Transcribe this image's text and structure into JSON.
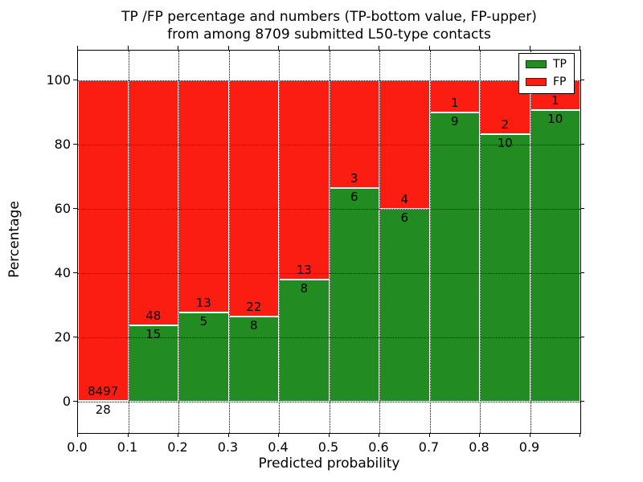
{
  "title": {
    "line1": "TP /FP percentage and numbers (TP-bottom value, FP-upper)",
    "line2": "from among 8709 submitted L50-type contacts"
  },
  "axes": {
    "x_label": "Predicted probability",
    "y_label": "Percentage",
    "x_ticks": [
      "0.0",
      "0.1",
      "0.2",
      "0.3",
      "0.4",
      "0.5",
      "0.6",
      "0.7",
      "0.8",
      "0.9"
    ],
    "y_ticks": [
      "0",
      "20",
      "40",
      "60",
      "80",
      "100"
    ]
  },
  "legend": {
    "items": [
      {
        "label": "TP",
        "color": "#228b22"
      },
      {
        "label": "FP",
        "color": "#fb1d12"
      }
    ]
  },
  "colors": {
    "tp": "#228b22",
    "fp": "#fb1d12",
    "grid": "#000000"
  },
  "total_contacts": "8709",
  "chart_data": {
    "type": "bar",
    "stacked": true,
    "title": "TP /FP percentage and numbers (TP-bottom value, FP-upper) from among 8709 submitted L50-type contacts",
    "xlabel": "Predicted probability",
    "ylabel": "Percentage",
    "x_bin_edges": [
      0.0,
      0.1,
      0.2,
      0.3,
      0.4,
      0.5,
      0.6,
      0.7,
      0.8,
      0.9,
      1.0
    ],
    "ylim": [
      -10,
      109
    ],
    "grid": true,
    "legend_position": "upper right",
    "series_note": "Each bar sums to 100%; TP (green) on bottom, FP (red) on top; labels show raw counts at the TP/FP boundary",
    "bins": [
      {
        "range": "0.0-0.1",
        "tp_count": 28,
        "fp_count": 8497,
        "tp_pct": 0.33,
        "fp_pct": 99.67
      },
      {
        "range": "0.1-0.2",
        "tp_count": 15,
        "fp_count": 48,
        "tp_pct": 23.81,
        "fp_pct": 76.19
      },
      {
        "range": "0.2-0.3",
        "tp_count": 5,
        "fp_count": 13,
        "tp_pct": 27.78,
        "fp_pct": 72.22
      },
      {
        "range": "0.3-0.4",
        "tp_count": 8,
        "fp_count": 22,
        "tp_pct": 26.67,
        "fp_pct": 73.33
      },
      {
        "range": "0.4-0.5",
        "tp_count": 8,
        "fp_count": 13,
        "tp_pct": 38.1,
        "fp_pct": 61.9
      },
      {
        "range": "0.5-0.6",
        "tp_count": 6,
        "fp_count": 3,
        "tp_pct": 66.67,
        "fp_pct": 33.33
      },
      {
        "range": "0.6-0.7",
        "tp_count": 6,
        "fp_count": 4,
        "tp_pct": 60.0,
        "fp_pct": 40.0
      },
      {
        "range": "0.7-0.8",
        "tp_count": 9,
        "fp_count": 1,
        "tp_pct": 90.0,
        "fp_pct": 10.0
      },
      {
        "range": "0.8-0.9",
        "tp_count": 10,
        "fp_count": 2,
        "tp_pct": 83.33,
        "fp_pct": 16.67
      },
      {
        "range": "0.9-1.0",
        "tp_count": 10,
        "fp_count": 1,
        "tp_pct": 90.91,
        "fp_pct": 9.09
      }
    ]
  }
}
